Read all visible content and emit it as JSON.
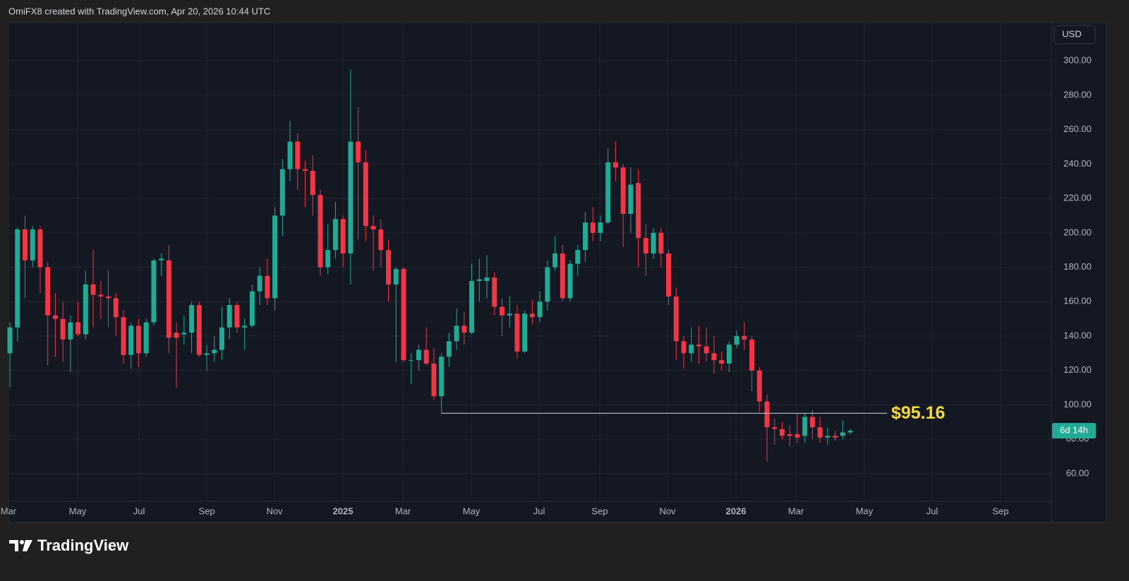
{
  "header": {
    "attribution": "OmiFX8 created with TradingView.com, Apr 20, 2026 10:44 UTC"
  },
  "footer": {
    "brand": "TradingView"
  },
  "chart_data": {
    "type": "candlestick",
    "currency": "USD",
    "countdown": "6d 14h",
    "up_color": "#22ab94",
    "down_color": "#f23645",
    "grid": true,
    "open": [
      130,
      145,
      202,
      184,
      202,
      180,
      152,
      150,
      138,
      148,
      141,
      170,
      164,
      163,
      162,
      151,
      129,
      146,
      130,
      148,
      184,
      184,
      142,
      141,
      142,
      158,
      129,
      130,
      132,
      145,
      158,
      145,
      146,
      166,
      175,
      162,
      210,
      237,
      253,
      237,
      236,
      222,
      180,
      190,
      208,
      188,
      253,
      241,
      204,
      202,
      190,
      170,
      179,
      126,
      126,
      132,
      124,
      105,
      128,
      137,
      146,
      142,
      172,
      172,
      174,
      157,
      152,
      153,
      131,
      153,
      151,
      160,
      180,
      188,
      162,
      182,
      190,
      206,
      200,
      206,
      241,
      238,
      211,
      229,
      197,
      188,
      200,
      188,
      163,
      137,
      130,
      135,
      134,
      130,
      126,
      124,
      135,
      140,
      138,
      120,
      102,
      87,
      86,
      83,
      83,
      82,
      93,
      87,
      81,
      82,
      82,
      84
    ],
    "high": [
      148,
      203,
      210,
      204,
      204,
      183,
      165,
      160,
      152,
      160,
      178,
      190,
      172,
      178,
      165,
      155,
      148,
      150,
      150,
      185,
      188,
      193,
      148,
      152,
      160,
      160,
      135,
      140,
      157,
      162,
      160,
      150,
      170,
      180,
      185,
      215,
      243,
      265,
      258,
      242,
      245,
      225,
      205,
      218,
      210,
      295,
      273,
      248,
      210,
      208,
      196,
      180,
      180,
      130,
      135,
      145,
      133,
      130,
      142,
      156,
      154,
      182,
      185,
      187,
      177,
      162,
      163,
      158,
      155,
      161,
      166,
      184,
      198,
      193,
      184,
      193,
      212,
      215,
      210,
      249,
      253,
      240,
      238,
      237,
      205,
      203,
      203,
      190,
      168,
      140,
      145,
      146,
      145,
      140,
      131,
      137,
      143,
      148,
      140,
      122,
      106,
      92,
      90,
      88,
      95,
      95,
      97,
      93,
      87,
      85,
      91,
      86
    ],
    "low": [
      110,
      137,
      162,
      180,
      165,
      123,
      128,
      125,
      119,
      140,
      138,
      145,
      150,
      145,
      140,
      124,
      121,
      122,
      128,
      146,
      175,
      130,
      110,
      135,
      130,
      128,
      120,
      125,
      126,
      138,
      142,
      132,
      145,
      158,
      158,
      155,
      198,
      230,
      225,
      215,
      210,
      175,
      176,
      185,
      180,
      170,
      196,
      195,
      178,
      180,
      160,
      125,
      125,
      112,
      120,
      123,
      103,
      95.16,
      122,
      132,
      135,
      141,
      160,
      162,
      152,
      140,
      145,
      127,
      130,
      147,
      148,
      155,
      178,
      160,
      160,
      175,
      183,
      195,
      195,
      205,
      230,
      192,
      200,
      180,
      175,
      185,
      180,
      158,
      126,
      121,
      125,
      124,
      125,
      118,
      120,
      119,
      133,
      132,
      108,
      96,
      67,
      77,
      80,
      76,
      78,
      78,
      80,
      78,
      77,
      79,
      80,
      83
    ],
    "close": [
      145,
      202,
      184,
      202,
      180,
      152,
      150,
      138,
      148,
      141,
      170,
      164,
      163,
      162,
      151,
      129,
      146,
      130,
      148,
      184,
      185,
      139,
      139,
      142,
      158,
      129,
      130,
      132,
      145,
      158,
      145,
      146,
      166,
      175,
      162,
      210,
      237,
      253,
      237,
      236,
      222,
      180,
      190,
      208,
      188,
      253,
      241,
      204,
      202,
      190,
      170,
      179,
      126,
      126,
      132,
      124,
      105,
      128,
      137,
      146,
      142,
      172,
      173,
      174,
      157,
      152,
      153,
      131,
      153,
      151,
      160,
      180,
      188,
      162,
      182,
      190,
      206,
      200,
      206,
      241,
      238,
      211,
      228,
      197,
      188,
      200,
      188,
      163,
      137,
      130,
      135,
      134,
      130,
      126,
      124,
      135,
      140,
      138,
      120,
      102,
      87,
      86,
      82,
      82,
      81,
      93,
      87,
      81,
      82,
      81,
      84,
      85
    ],
    "xlim": [
      -0.19,
      137.56
    ],
    "xticks": [
      {
        "value": -0.19,
        "label": "Mar"
      },
      {
        "value": 8.95,
        "label": "May"
      },
      {
        "value": 17.06,
        "label": "Jul"
      },
      {
        "value": 26.0,
        "label": "Sep"
      },
      {
        "value": 34.95,
        "label": "Nov"
      },
      {
        "value": 43.99,
        "label": "2025"
      },
      {
        "value": 51.91,
        "label": "Mar"
      },
      {
        "value": 60.95,
        "label": "May"
      },
      {
        "value": 69.9,
        "label": "Jul"
      },
      {
        "value": 77.9,
        "label": "Sep"
      },
      {
        "value": 86.86,
        "label": "Nov"
      },
      {
        "value": 95.9,
        "label": "2026"
      },
      {
        "value": 103.82,
        "label": "Mar"
      },
      {
        "value": 112.86,
        "label": "May"
      },
      {
        "value": 121.81,
        "label": "Jul"
      },
      {
        "value": 130.85,
        "label": "Sep"
      }
    ],
    "ylim": [
      44,
      322.2
    ],
    "yticks": [
      {
        "value": 60,
        "label": "60.00"
      },
      {
        "value": 80,
        "label": "80.00"
      },
      {
        "value": 100,
        "label": "100.00"
      },
      {
        "value": 120,
        "label": "120.00"
      },
      {
        "value": 140,
        "label": "140.00"
      },
      {
        "value": 160,
        "label": "160.00"
      },
      {
        "value": 180,
        "label": "180.00"
      },
      {
        "value": 200,
        "label": "200.00"
      },
      {
        "value": 220,
        "label": "220.00"
      },
      {
        "value": 240,
        "label": "240.00"
      },
      {
        "value": 260,
        "label": "260.00"
      },
      {
        "value": 280,
        "label": "280.00"
      },
      {
        "value": 300,
        "label": "300.00"
      }
    ],
    "annotation": {
      "label": "$95.16",
      "value": 95.16,
      "x_start": 57,
      "x_end": 115.84,
      "color": "#f5d742"
    }
  }
}
